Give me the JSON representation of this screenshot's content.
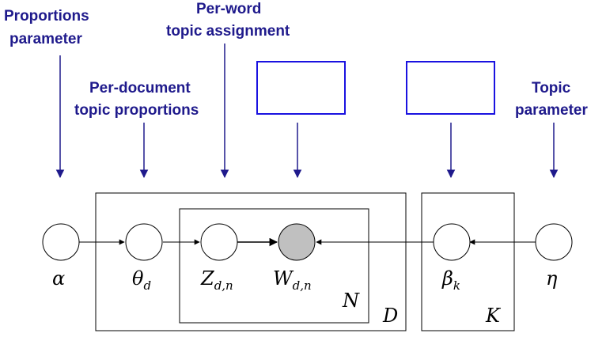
{
  "labels": {
    "proportions_parameter": [
      "Proportions",
      "parameter"
    ],
    "per_word_topic_assignment": [
      "Per-word",
      "topic assignment"
    ],
    "per_document_topic_proportions": [
      "Per-document",
      "topic proportions"
    ],
    "topic_parameter": [
      "Topic",
      "parameter"
    ]
  },
  "nodes": {
    "alpha": {
      "symbol": "α",
      "sub": ""
    },
    "theta": {
      "symbol": "θ",
      "sub": "d"
    },
    "z": {
      "symbol": "Z",
      "sub": "d,n"
    },
    "w": {
      "symbol": "W",
      "sub": "d,n",
      "observed": true
    },
    "beta": {
      "symbol": "β",
      "sub": "k"
    },
    "eta": {
      "symbol": "η",
      "sub": ""
    }
  },
  "plates": {
    "n": "N",
    "d": "D",
    "k": "K"
  },
  "colors": {
    "label": "#1f1a8c",
    "observed_fill": "#c0c0c0",
    "empty_box": "#1a12e0"
  }
}
